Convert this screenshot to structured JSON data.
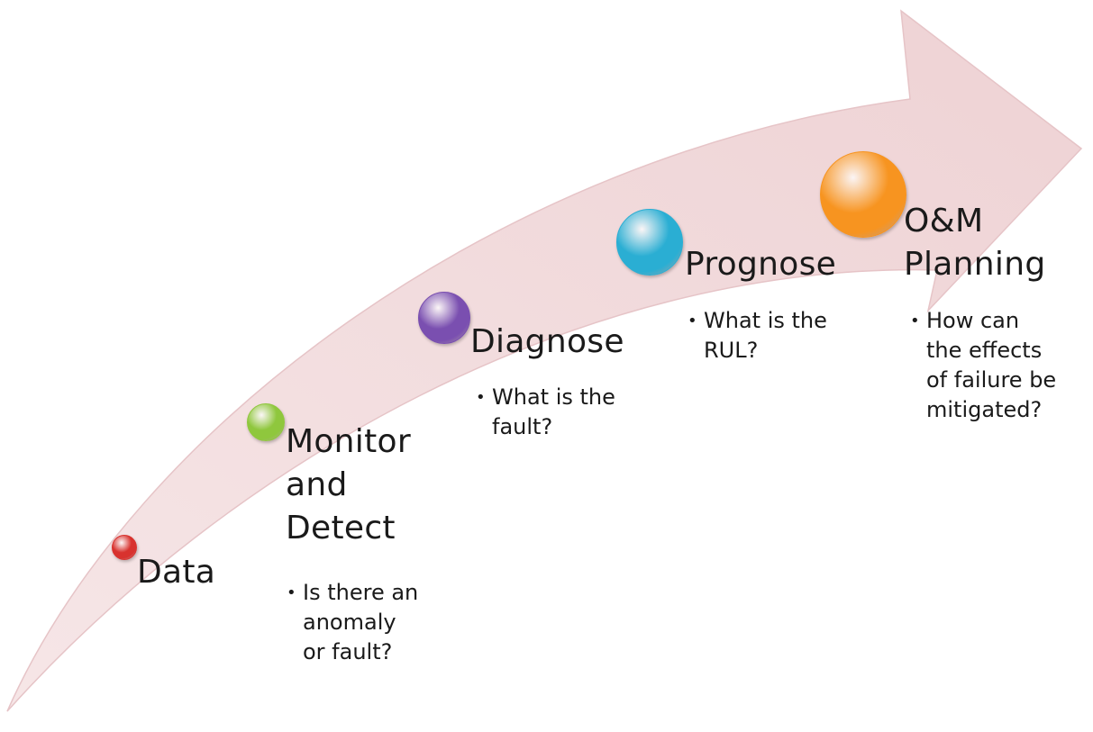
{
  "diagram": {
    "stages": [
      {
        "id": "data",
        "title_lines": [
          "Data"
        ],
        "bullet_lines": [],
        "color": "#d8322e"
      },
      {
        "id": "monitor",
        "title_lines": [
          "Monitor",
          "and",
          "Detect"
        ],
        "bullet_lines": [
          "Is there an",
          "anomaly",
          "or fault?"
        ],
        "color": "#8fc73d"
      },
      {
        "id": "diagnose",
        "title_lines": [
          "Diagnose"
        ],
        "bullet_lines": [
          "What is the",
          "fault?"
        ],
        "color": "#7a4fb0"
      },
      {
        "id": "prognose",
        "title_lines": [
          "Prognose"
        ],
        "bullet_lines": [
          "What is the",
          "RUL?"
        ],
        "color": "#2aaed3"
      },
      {
        "id": "om",
        "title_lines": [
          "O&M",
          "Planning"
        ],
        "bullet_lines": [
          "How can",
          "the effects",
          "of failure be",
          "mitigated?"
        ],
        "color": "#f79420"
      }
    ],
    "bullet_symbol": "•",
    "arrow_color": "#f2d9da",
    "arrow_edge_color": "#e3b9bc"
  }
}
